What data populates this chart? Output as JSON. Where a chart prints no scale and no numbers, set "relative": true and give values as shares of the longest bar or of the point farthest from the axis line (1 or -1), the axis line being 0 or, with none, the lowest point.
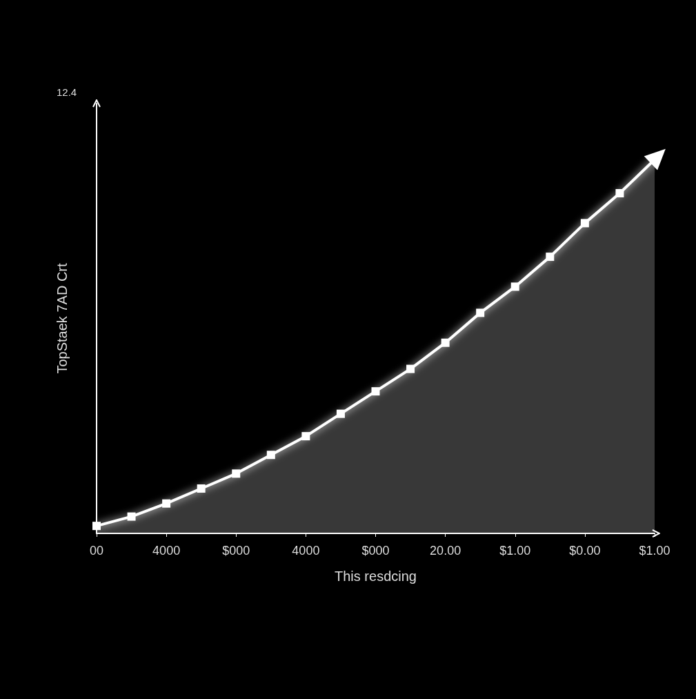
{
  "chart_data": {
    "type": "area",
    "relative": true,
    "xlabel": "This resdcing",
    "ylabel": "TopStaek 7AD Crt",
    "annotations": [
      "12.4"
    ],
    "categories": [
      "00",
      null,
      "4000",
      null,
      "$000",
      null,
      "4000",
      null,
      "$000",
      null,
      "20.00",
      null,
      "$1.00",
      null,
      "$0.00",
      null,
      "$1.00"
    ],
    "series": [
      {
        "color": "#ffffff",
        "values": [
          0.02,
          0.045,
          0.08,
          0.12,
          0.16,
          0.21,
          0.26,
          0.32,
          0.38,
          0.44,
          0.51,
          0.59,
          0.66,
          0.74,
          0.83,
          0.91,
          1
        ]
      }
    ],
    "marker": "square",
    "line_style": "solid",
    "grid": false
  }
}
